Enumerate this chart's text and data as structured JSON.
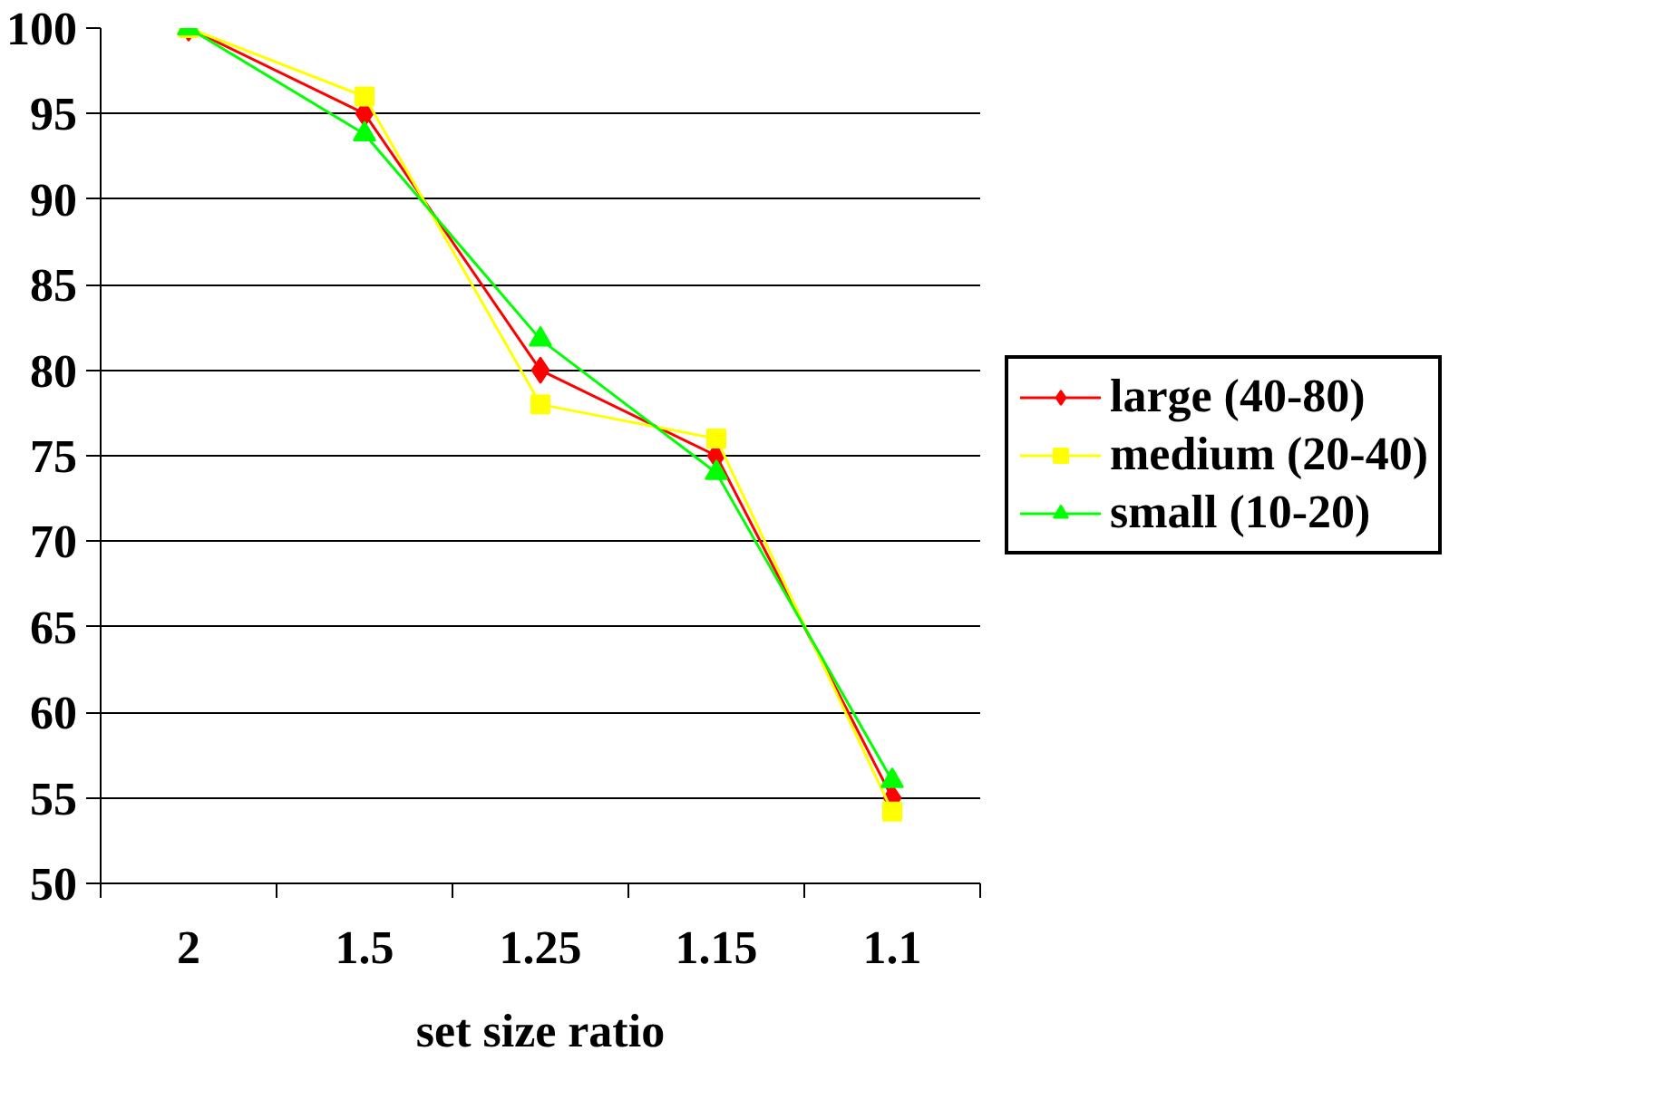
{
  "chart_data": {
    "type": "line",
    "xlabel": "set size ratio",
    "categories": [
      "2",
      "1.5",
      "1.25",
      "1.15",
      "1.1"
    ],
    "ylim": [
      50,
      100
    ],
    "yticks": [
      50,
      55,
      60,
      65,
      70,
      75,
      80,
      85,
      90,
      95,
      100
    ],
    "grid": "y",
    "legend": "right",
    "line_style": "solid",
    "series": [
      {
        "name": "large (40-80)",
        "color": "#ff0000",
        "marker": "diamond",
        "values": [
          100,
          95,
          80,
          75,
          55
        ]
      },
      {
        "name": "medium (20-40)",
        "color": "#ffff00",
        "marker": "square",
        "values": [
          100,
          96,
          78,
          76,
          54.2
        ]
      },
      {
        "name": "small (10-20)",
        "color": "#00ff00",
        "marker": "triangle",
        "values": [
          100,
          93.8,
          81.8,
          74,
          56
        ]
      }
    ]
  }
}
